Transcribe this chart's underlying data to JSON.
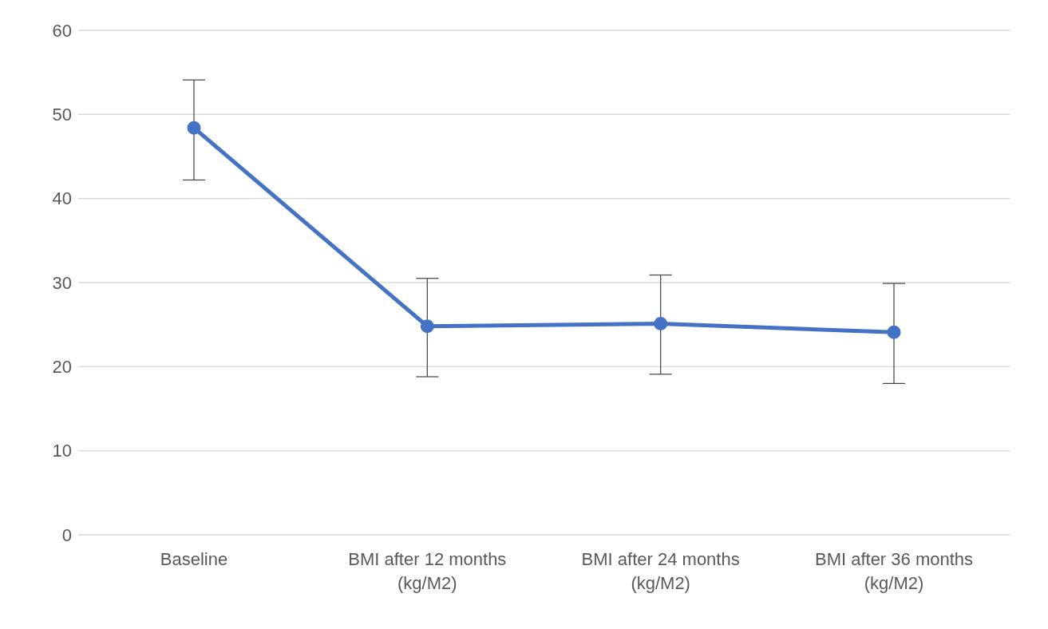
{
  "chart_data": {
    "type": "line",
    "categories": [
      "Baseline",
      "BMI after 12 months (kg/M2)",
      "BMI after 24 months (kg/M2)",
      "BMI after 36 months (kg/M2)"
    ],
    "values": [
      48.4,
      24.8,
      25.1,
      24.1
    ],
    "errors": [
      [
        42.2,
        54.1
      ],
      [
        18.8,
        30.5
      ],
      [
        19.1,
        30.9
      ],
      [
        18.0,
        29.9
      ]
    ],
    "color": "#4472c4",
    "ylim": [
      0,
      60
    ],
    "yticks": [
      0,
      10,
      20,
      30,
      40,
      50,
      60
    ],
    "grid": "y",
    "marker": "circle",
    "line_style": "solid"
  }
}
